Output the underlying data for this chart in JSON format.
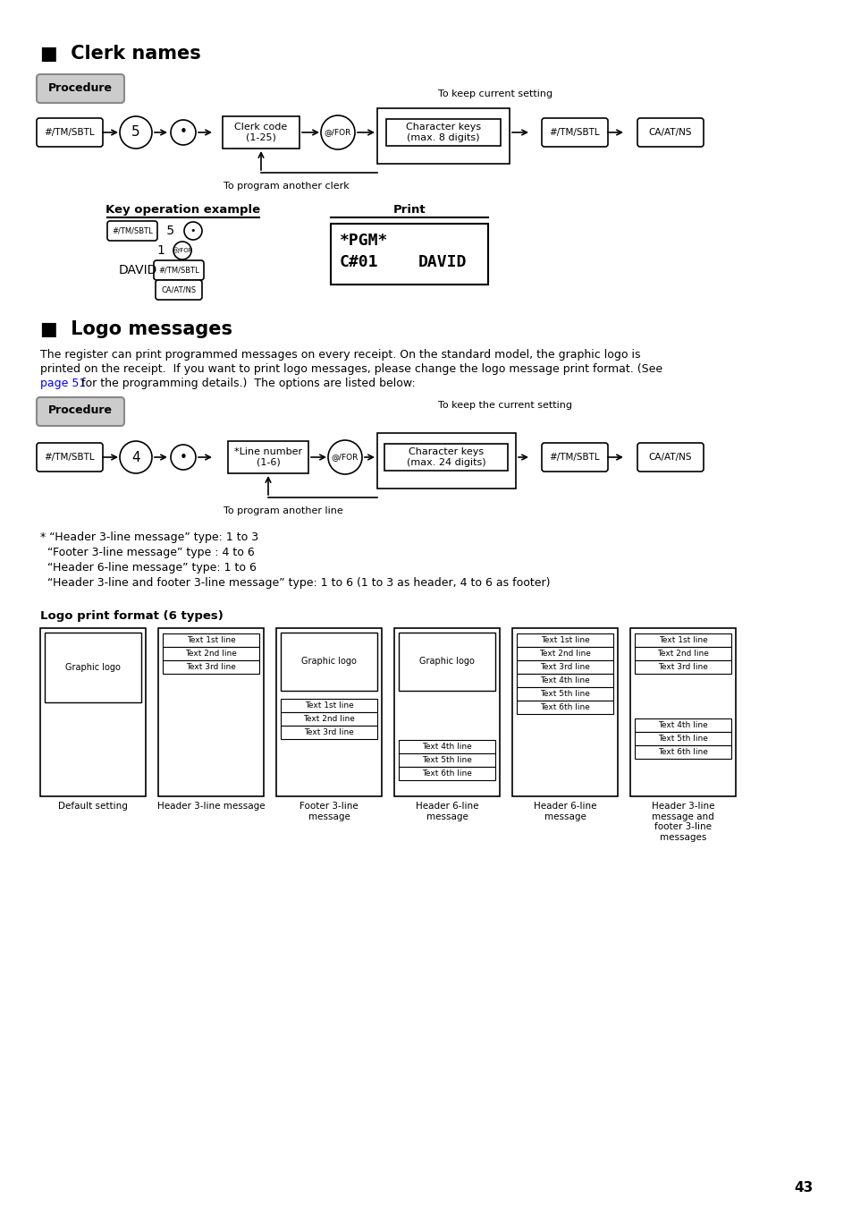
{
  "bg_color": "#ffffff",
  "section1_heading": "■  Clerk names",
  "section2_heading": "■  Logo messages",
  "procedure_label": "Procedure",
  "keep_current_clerk": "To keep current setting",
  "keep_current_logo": "To keep the current setting",
  "program_another_clerk": "To program another clerk",
  "program_another_line": "To program another line",
  "key_op_label": "Key operation example",
  "print_label": "Print",
  "logo_body_1": "The register can print programmed messages on every receipt. On the standard model, the graphic logo is",
  "logo_body_2": "printed on the receipt.  If you want to print logo messages, please change the logo message print format. (See",
  "logo_body_3a": "page 51",
  "logo_body_3b": " for the programming details.)  The options are listed below:",
  "notes": [
    "* “Header 3-line message” type: 1 to 3",
    "  “Footer 3-line message” type : 4 to 6",
    "  “Header 6-line message” type: 1 to 6",
    "  “Header 3-line and footer 3-line message” type: 1 to 6 (1 to 3 as header, 4 to 6 as footer)"
  ],
  "logo_format_title": "Logo print format (6 types)",
  "labels_correct": [
    "Default setting",
    "Header 3-line message",
    "Footer 3-line\nmessage",
    "Header 6-line\nmessage",
    "Header 6-line\nmessage",
    "Header 3-line\nmessage and\nfooter 3-line\nmessages"
  ],
  "page_number": "43"
}
